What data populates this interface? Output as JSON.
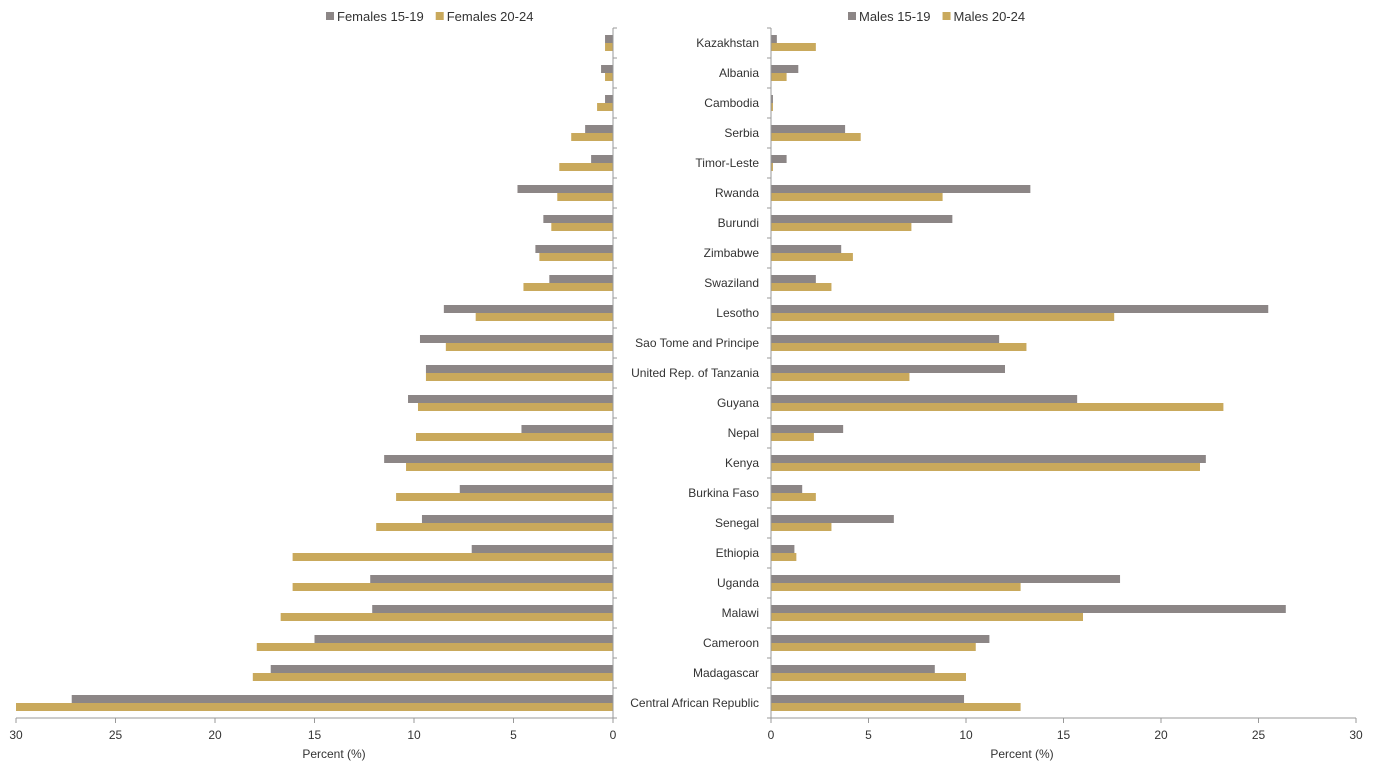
{
  "chart_data": {
    "type": "bar",
    "orientation": "horizontal",
    "categories": [
      "Kazakhstan",
      "Albania",
      "Cambodia",
      "Serbia",
      "Timor-Leste",
      "Rwanda",
      "Burundi",
      "Zimbabwe",
      "Swaziland",
      "Lesotho",
      "Sao Tome and Principe",
      "United Rep. of Tanzania",
      "Guyana",
      "Nepal",
      "Kenya",
      "Burkina Faso",
      "Senegal",
      "Ethiopia",
      "Uganda",
      "Malawi",
      "Cameroon",
      "Madagascar",
      "Central African Republic"
    ],
    "panels": [
      {
        "side": "left",
        "reversed": true,
        "xlabel": "Percent (%)",
        "xlim": [
          0,
          30
        ],
        "xticks": [
          30,
          25,
          20,
          15,
          10,
          5,
          0
        ],
        "series": [
          {
            "name": "Females 15-19",
            "color": "#8c8686",
            "values": [
              0.4,
              0.6,
              0.4,
              1.4,
              1.1,
              4.8,
              3.5,
              3.9,
              3.2,
              8.5,
              9.7,
              9.4,
              10.3,
              4.6,
              11.5,
              7.7,
              9.6,
              7.1,
              12.2,
              12.1,
              15.0,
              17.2,
              27.2
            ]
          },
          {
            "name": "Females 20-24",
            "color": "#c9a95c",
            "values": [
              0.4,
              0.4,
              0.8,
              2.1,
              2.7,
              2.8,
              3.1,
              3.7,
              4.5,
              6.9,
              8.4,
              9.4,
              9.8,
              9.9,
              10.4,
              10.9,
              11.9,
              16.1,
              16.1,
              16.7,
              17.9,
              18.1,
              30.0
            ]
          }
        ]
      },
      {
        "side": "right",
        "reversed": false,
        "xlabel": "Percent (%)",
        "xlim": [
          0,
          30
        ],
        "xticks": [
          0,
          5,
          10,
          15,
          20,
          25,
          30
        ],
        "series": [
          {
            "name": "Males 15-19",
            "color": "#8c8686",
            "values": [
              0.3,
              1.4,
              0.1,
              3.8,
              0.8,
              13.3,
              9.3,
              3.6,
              2.3,
              25.5,
              11.7,
              12.0,
              15.7,
              3.7,
              22.3,
              1.6,
              6.3,
              1.2,
              17.9,
              26.4,
              11.2,
              8.4,
              9.9
            ]
          },
          {
            "name": "Males 20-24",
            "color": "#c9a95c",
            "values": [
              2.3,
              0.8,
              0.1,
              4.6,
              0.1,
              8.8,
              7.2,
              4.2,
              3.1,
              17.6,
              13.1,
              7.1,
              23.2,
              2.2,
              22.0,
              2.3,
              3.1,
              1.3,
              12.8,
              16.0,
              10.5,
              10.0,
              12.8
            ]
          }
        ]
      }
    ],
    "legend": "top",
    "grid": false
  }
}
